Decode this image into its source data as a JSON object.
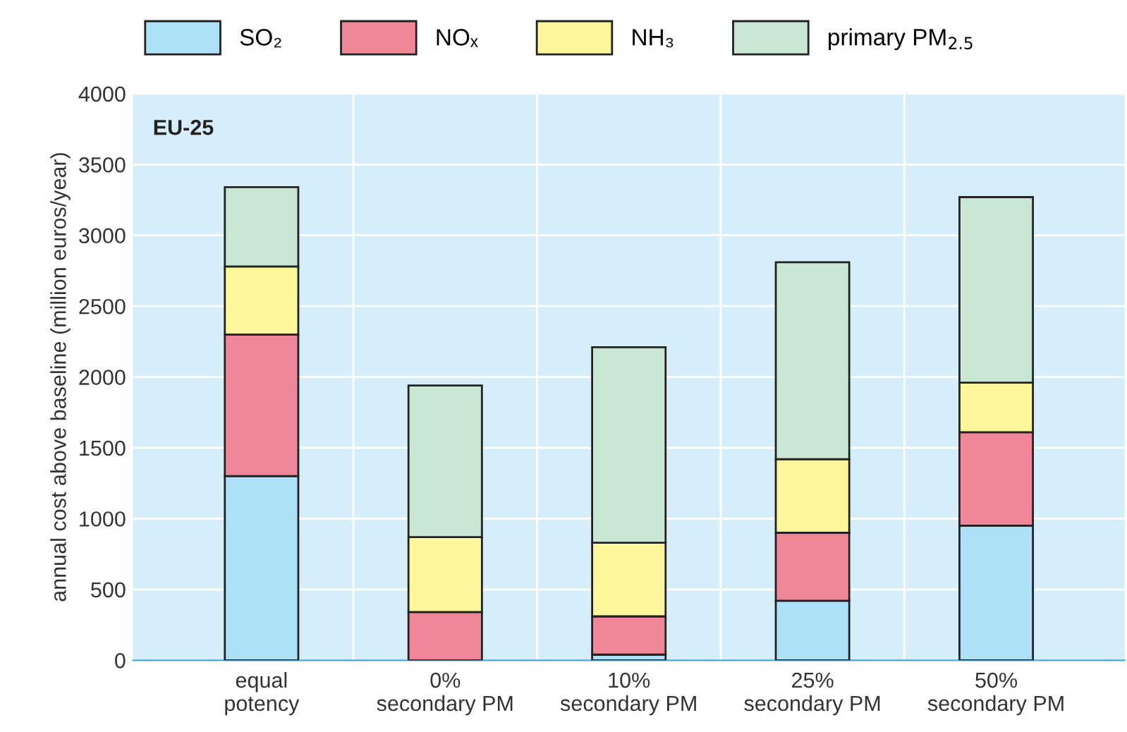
{
  "chart_data": {
    "type": "bar",
    "stacked": true,
    "ylabel": "annual cost above baseline (million euros/year)",
    "categories": [
      "equal\npotency",
      "0%\nsecondary PM",
      "10%\nsecondary PM",
      "25%\nsecondary PM",
      "50%\nsecondary PM"
    ],
    "series": [
      {
        "name": "SO₂",
        "color": "#aee0f7",
        "values": [
          1300,
          0,
          40,
          420,
          950
        ]
      },
      {
        "name": "NOₓ",
        "color": "#f08799",
        "values": [
          1000,
          340,
          270,
          480,
          660
        ]
      },
      {
        "name": "NH₃",
        "color": "#fef69a",
        "values": [
          480,
          530,
          520,
          520,
          350
        ]
      },
      {
        "name": "primary PM$_{2.5}$",
        "color": "#c8e6d2",
        "values": [
          560,
          1070,
          1380,
          1390,
          1310
        ]
      }
    ],
    "ylim": [
      0,
      4000
    ],
    "yticks": [
      0,
      500,
      1000,
      1500,
      2000,
      2500,
      3000,
      3500,
      4000
    ],
    "grid": "y",
    "legend": "top",
    "annotations": [
      "EU-25"
    ]
  }
}
